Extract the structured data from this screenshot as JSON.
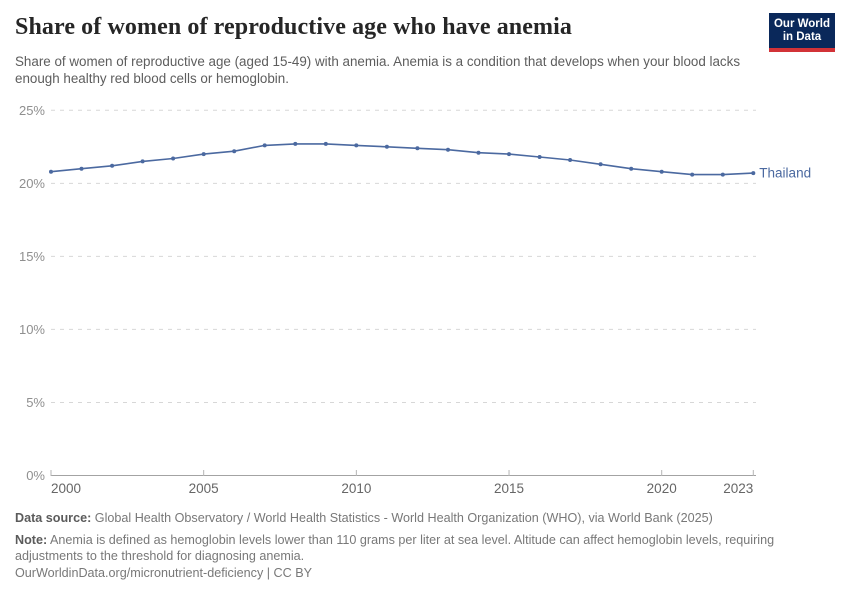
{
  "header": {
    "title": "Share of women of reproductive age who have anemia",
    "subtitle": "Share of women of reproductive age (aged 15-49) with anemia. Anemia is a condition that develops when your blood lacks enough healthy red blood cells or hemoglobin.",
    "logo": {
      "line1": "Our World",
      "line2": "in Data",
      "bg_color": "#0a285a",
      "accent_color": "#d23237"
    }
  },
  "chart_data": {
    "type": "line",
    "title": "Share of women of reproductive age who have anemia",
    "x": [
      2000,
      2001,
      2002,
      2003,
      2004,
      2005,
      2006,
      2007,
      2008,
      2009,
      2010,
      2011,
      2012,
      2013,
      2014,
      2015,
      2016,
      2017,
      2018,
      2019,
      2020,
      2021,
      2022,
      2023
    ],
    "series": [
      {
        "name": "Thailand",
        "color": "#4b69a0",
        "values": [
          20.8,
          21.0,
          21.2,
          21.5,
          21.7,
          22.0,
          22.2,
          22.6,
          22.7,
          22.7,
          22.6,
          22.5,
          22.4,
          22.3,
          22.1,
          22.0,
          21.8,
          21.6,
          21.3,
          21.0,
          20.8,
          20.6,
          20.6,
          20.7
        ]
      }
    ],
    "ylim": [
      0,
      25
    ],
    "yticks": [
      0,
      5,
      10,
      15,
      20,
      25
    ],
    "ytick_labels": [
      "0%",
      "5%",
      "10%",
      "15%",
      "20%",
      "25%"
    ],
    "xticks": [
      2000,
      2005,
      2010,
      2015,
      2020,
      2023
    ],
    "grid": "horizontal-dashed",
    "legend_position": "end-of-line-label",
    "colors": {
      "gridline": "#d7d7d7",
      "axis_line": "#a3a3a3",
      "tick_mark": "#b5b5b5",
      "y_label": "#8f8f8f",
      "x_label": "#666666"
    }
  },
  "footer": {
    "data_source_label": "Data source:",
    "data_source": "Global Health Observatory / World Health Statistics - World Health Organization (WHO), via World Bank (2025)",
    "note_label": "Note:",
    "note": "Anemia is defined as hemoglobin levels lower than 110 grams per liter at sea level. Altitude can affect hemoglobin levels, requiring adjustments to the threshold for diagnosing anemia.",
    "citation": "OurWorldinData.org/micronutrient-deficiency | CC BY"
  }
}
